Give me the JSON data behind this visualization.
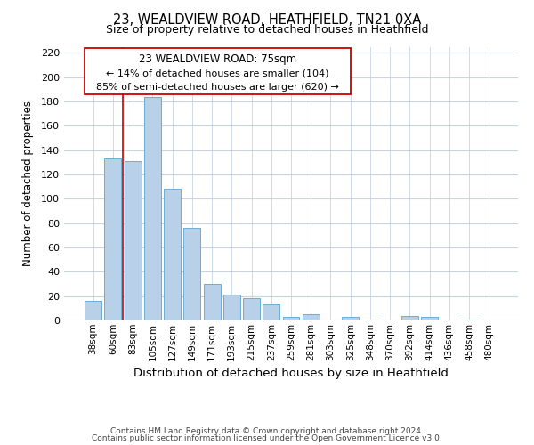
{
  "title1": "23, WEALDVIEW ROAD, HEATHFIELD, TN21 0XA",
  "title2": "Size of property relative to detached houses in Heathfield",
  "xlabel": "Distribution of detached houses by size in Heathfield",
  "ylabel": "Number of detached properties",
  "bar_labels": [
    "38sqm",
    "60sqm",
    "83sqm",
    "105sqm",
    "127sqm",
    "149sqm",
    "171sqm",
    "193sqm",
    "215sqm",
    "237sqm",
    "259sqm",
    "281sqm",
    "303sqm",
    "325sqm",
    "348sqm",
    "370sqm",
    "392sqm",
    "414sqm",
    "436sqm",
    "458sqm",
    "480sqm"
  ],
  "bar_values": [
    16,
    133,
    131,
    184,
    108,
    76,
    30,
    21,
    18,
    13,
    3,
    5,
    0,
    3,
    1,
    0,
    4,
    3,
    0,
    1,
    0
  ],
  "bar_color": "#b8d0e8",
  "bar_edge_color": "#6baed6",
  "vline_x": 1.5,
  "vline_color": "#cc0000",
  "annotation_title": "23 WEALDVIEW ROAD: 75sqm",
  "annotation_line1": "← 14% of detached houses are smaller (104)",
  "annotation_line2": "85% of semi-detached houses are larger (620) →",
  "ylim": [
    0,
    225
  ],
  "yticks": [
    0,
    20,
    40,
    60,
    80,
    100,
    120,
    140,
    160,
    180,
    200,
    220
  ],
  "footer1": "Contains HM Land Registry data © Crown copyright and database right 2024.",
  "footer2": "Contains public sector information licensed under the Open Government Licence v3.0.",
  "bg_color": "#ffffff",
  "grid_color": "#c8d4e4"
}
